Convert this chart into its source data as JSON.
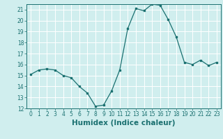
{
  "x": [
    0,
    1,
    2,
    3,
    4,
    5,
    6,
    7,
    8,
    9,
    10,
    11,
    12,
    13,
    14,
    15,
    16,
    17,
    18,
    19,
    20,
    21,
    22,
    23
  ],
  "y": [
    15.1,
    15.5,
    15.6,
    15.5,
    15.0,
    14.8,
    14.0,
    13.4,
    12.2,
    12.3,
    13.6,
    15.5,
    19.3,
    21.1,
    20.9,
    21.5,
    21.4,
    20.1,
    18.5,
    16.2,
    16.0,
    16.4,
    15.9,
    16.2
  ],
  "xlabel": "Humidex (Indice chaleur)",
  "line_color": "#1a7070",
  "marker": "s",
  "marker_size": 2,
  "bg_color": "#d0eeee",
  "grid_color": "#ffffff",
  "ylim": [
    12,
    21.5
  ],
  "xlim": [
    -0.5,
    23.5
  ],
  "yticks": [
    12,
    13,
    14,
    15,
    16,
    17,
    18,
    19,
    20,
    21
  ],
  "xticks": [
    0,
    1,
    2,
    3,
    4,
    5,
    6,
    7,
    8,
    9,
    10,
    11,
    12,
    13,
    14,
    15,
    16,
    17,
    18,
    19,
    20,
    21,
    22,
    23
  ],
  "tick_label_fontsize": 5.5,
  "xlabel_fontsize": 7.5,
  "linewidth": 0.9
}
